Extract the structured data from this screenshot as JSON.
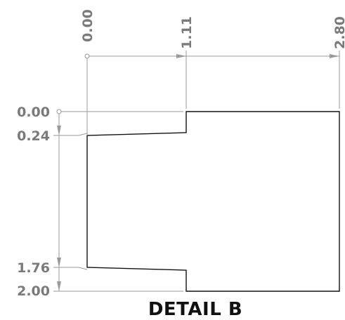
{
  "detail": {
    "title": "DETAIL B"
  },
  "horizontal_dimensions": {
    "labels": [
      "0.00",
      "1.11",
      "2.80"
    ]
  },
  "vertical_dimensions": {
    "labels": [
      "0.00",
      "0.24",
      "1.76",
      "2.00"
    ]
  },
  "colors": {
    "part_outline": "#111111",
    "dimension_lines": "#9a9a9a",
    "dimension_text": "#7a7a7a"
  }
}
